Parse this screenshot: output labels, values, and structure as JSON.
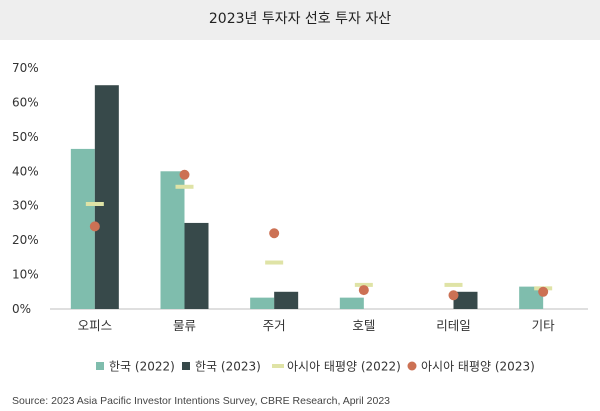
{
  "title": "2023년 투자자 선호 투자 자산",
  "source": "Source: 2023 Asia Pacific Investor Intentions Survey, CBRE Research, April 2023",
  "chart_data": {
    "type": "bar",
    "title": "2023년 투자자 선호 투자 자산",
    "xlabel": "",
    "ylabel": "",
    "categories": [
      "오피스",
      "물류",
      "주거",
      "호텔",
      "리테일",
      "기타"
    ],
    "ylim": [
      0,
      70
    ],
    "yticks": [
      0,
      10,
      20,
      30,
      40,
      50,
      60,
      70
    ],
    "ytick_labels": [
      "0%",
      "10%",
      "20%",
      "30%",
      "40%",
      "50%",
      "60%",
      "70%"
    ],
    "grid": false,
    "legend_position": "bottom",
    "series": [
      {
        "name": "한국 (2022)",
        "kind": "bar",
        "color": "#7fbdad",
        "values": [
          46.5,
          40,
          3.3,
          3.3,
          0,
          6.5
        ]
      },
      {
        "name": "한국 (2023)",
        "kind": "bar",
        "color": "#37494a",
        "values": [
          65,
          25,
          5,
          0,
          5,
          0
        ]
      },
      {
        "name": "아시아 태평양 (2022)",
        "kind": "dash",
        "color": "#dfe3a6",
        "values": [
          30.5,
          35.5,
          13.5,
          7,
          7,
          6
        ]
      },
      {
        "name": "아시아 태평양 (2023)",
        "kind": "dot",
        "color": "#cc7154",
        "values": [
          24,
          39,
          22,
          5.5,
          4,
          5
        ]
      }
    ]
  }
}
